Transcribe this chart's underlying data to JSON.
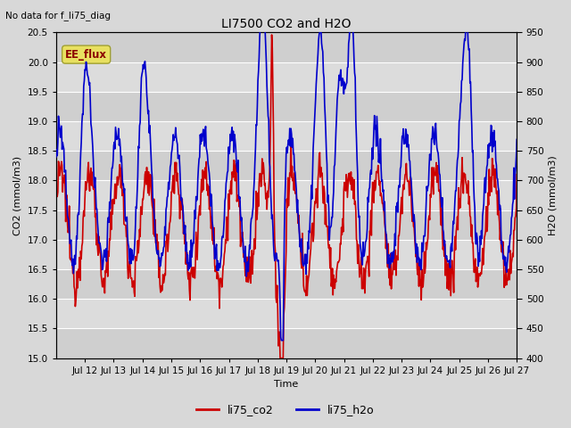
{
  "title": "LI7500 CO2 and H2O",
  "top_left_text": "No data for f_li75_diag",
  "xlabel": "Time",
  "ylabel_left": "CO2 (mmol/m3)",
  "ylabel_right": "H2O (mmol/m3)",
  "annotation_box": "EE_flux",
  "ylim_left": [
    15.0,
    20.5
  ],
  "ylim_right": [
    400,
    950
  ],
  "xtick_labels": [
    "Jul 12",
    "Jul 13",
    "Jul 14",
    "Jul 15",
    "Jul 16",
    "Jul 17",
    "Jul 18",
    "Jul 19",
    "Jul 20",
    "Jul 21",
    "Jul 22",
    "Jul 23",
    "Jul 24",
    "Jul 25",
    "Jul 26",
    "Jul 27"
  ],
  "legend_labels": [
    "li75_co2",
    "li75_h2o"
  ],
  "color_co2": "#cc0000",
  "color_h2o": "#0000cc",
  "bg_color": "#d8d8d8",
  "plot_bg": "#e8e8e8",
  "linewidth": 1.2,
  "title_fontsize": 10,
  "axis_fontsize": 8,
  "tick_fontsize": 7.5
}
